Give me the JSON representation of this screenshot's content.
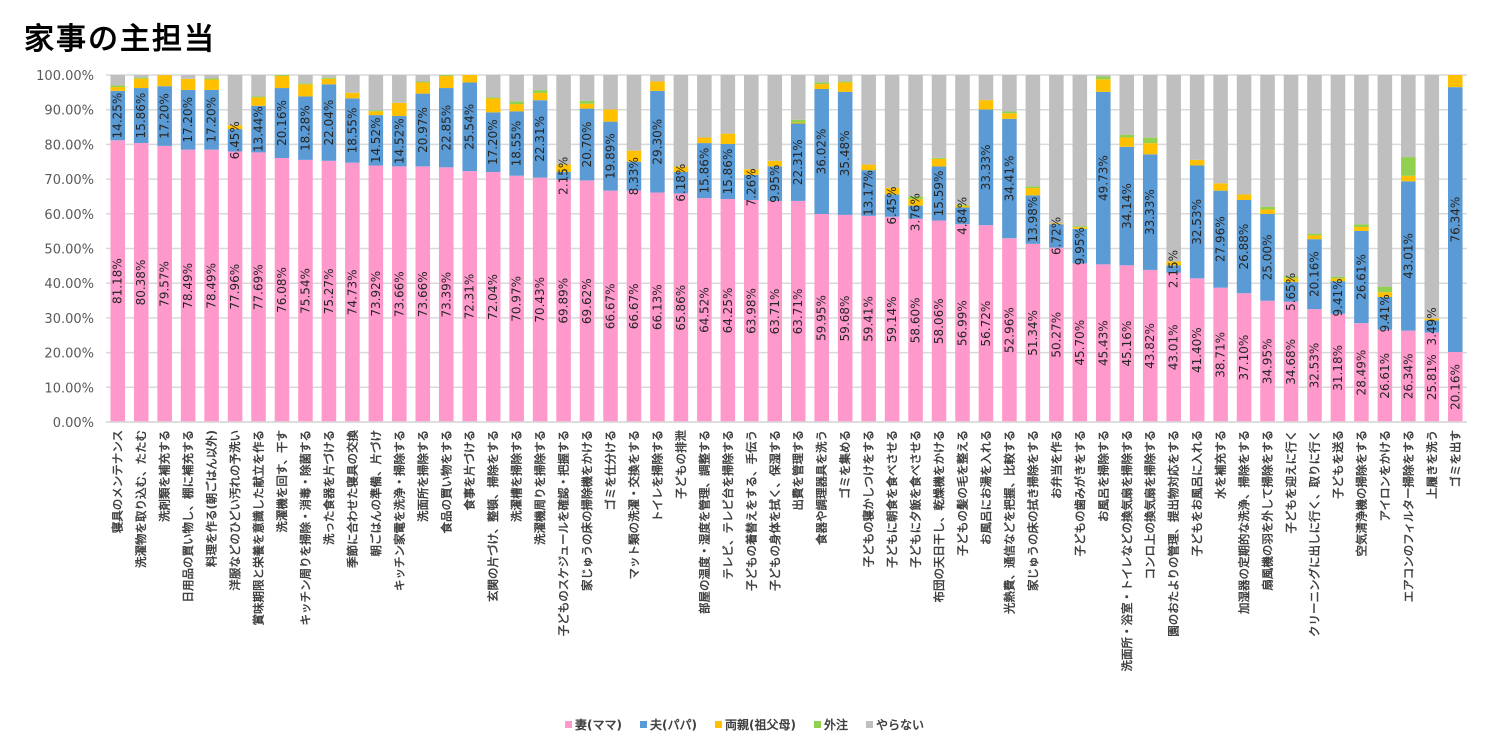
{
  "chart_data": {
    "type": "bar",
    "stacked": true,
    "title": "家事の主担当",
    "xlabel": "",
    "ylabel": "",
    "ylim": [
      0,
      100
    ],
    "yticks": [
      "0.00%",
      "10.00%",
      "20.00%",
      "30.00%",
      "40.00%",
      "50.00%",
      "60.00%",
      "70.00%",
      "80.00%",
      "90.00%",
      "100.00%"
    ],
    "grid": true,
    "legend_position": "bottom",
    "categories": [
      "寝具のメンテナンス",
      "洗濯物を取り込む、たたむ",
      "洗剤類を補充する",
      "日用品の買い物し、棚に補充する",
      "料理を作る(朝ごはん以外)",
      "洋服などのひどい汚れの予洗い",
      "賞味期限と栄養を意識した献立を作る",
      "洗濯機を回す、干す",
      "キッチン周りを掃除・消毒・除菌する",
      "洗った食器を片づける",
      "季節に合わせた寝具の交換",
      "朝ごはんの準備、片づけ",
      "キッチン家電を洗浄・掃除する",
      "洗面所を掃除する",
      "食品の買い物をする",
      "食事を片づける",
      "玄関の片づけ、整頓、掃除をする",
      "洗濯槽を掃除する",
      "洗濯機周りを掃除する",
      "子どものスケジュールを確認・把握する",
      "家じゅうの床の掃除機をかける",
      "ゴミを仕分ける",
      "マット類の洗濯・交換をする",
      "トイレを掃除する",
      "子どもの排泄",
      "部屋の温度・湿度を管理、調整する",
      "テレビ、テレビ台を掃除する",
      "子どもの着替えをする、手伝う",
      "子どもの身体を拭く、保湿する",
      "出費を管理する",
      "食器や調理器具を洗う",
      "ゴミを集める",
      "子どもの寝かしつけをする",
      "子どもに朝食を食べさせる",
      "子どもに夕飯を食べさせる",
      "布団の天日干し、乾燥機をかける",
      "子どもの髪の毛を整える",
      "お風呂にお湯を入れる",
      "光熱費、通信などを把握、比較する",
      "家じゅうの床の拭き掃除をする",
      "お弁当を作る",
      "子どもの歯みがきをする",
      "お風呂を掃除する",
      "洗面所・浴室・トイレなどの換気扇を掃除する",
      "コンロ上の換気扇を掃除する",
      "園のおたよりの管理、提出物対応をする",
      "子どもをお風呂に入れる",
      "水を補充する",
      "加湿器の定期的な洗浄、掃除をする",
      "扇風機の羽を外して掃除をする",
      "子どもを迎えに行く",
      "クリーニングに出しに行く、取りに行く",
      "子どもを送る",
      "空気清浄機の掃除をする",
      "アイロンをかける",
      "エアコンのフィルター掃除をする",
      "上履きを洗う",
      "ゴミを出す"
    ],
    "series": [
      {
        "name": "妻(ママ)",
        "color": "#ff99cc",
        "values": [
          81.18,
          80.38,
          79.57,
          78.49,
          78.49,
          77.96,
          77.69,
          76.08,
          75.54,
          75.27,
          74.73,
          73.92,
          73.66,
          73.66,
          73.39,
          72.31,
          72.04,
          70.97,
          70.43,
          69.89,
          69.62,
          66.67,
          66.67,
          66.13,
          65.86,
          64.52,
          64.25,
          63.98,
          63.71,
          63.71,
          59.95,
          59.68,
          59.41,
          59.14,
          58.6,
          58.06,
          56.99,
          56.72,
          52.96,
          51.34,
          50.27,
          45.7,
          45.43,
          45.16,
          43.82,
          43.01,
          41.4,
          38.71,
          37.1,
          34.95,
          34.68,
          32.53,
          31.18,
          28.49,
          26.61,
          26.34,
          25.81,
          20.16
        ]
      },
      {
        "name": "夫(パパ)",
        "color": "#5b9bd5",
        "values": [
          14.25,
          15.86,
          17.2,
          17.2,
          17.2,
          6.45,
          13.44,
          20.16,
          18.28,
          22.04,
          18.55,
          14.52,
          14.52,
          20.97,
          22.85,
          25.54,
          17.2,
          18.55,
          22.31,
          2.15,
          20.7,
          19.89,
          8.33,
          29.3,
          6.18,
          15.86,
          15.86,
          7.26,
          9.95,
          22.31,
          36.02,
          35.48,
          13.17,
          6.45,
          3.76,
          15.59,
          4.84,
          33.33,
          34.41,
          13.98,
          6.72,
          9.95,
          49.73,
          34.14,
          33.33,
          2.15,
          32.53,
          27.96,
          26.88,
          25.0,
          5.65,
          20.16,
          9.41,
          26.61,
          9.41,
          43.01,
          3.49,
          76.34
        ]
      },
      {
        "name": "両親(祖父母)",
        "color": "#ffc000",
        "values": [
          1.1,
          2.7,
          3.2,
          3.2,
          3.0,
          1.1,
          2.4,
          3.5,
          3.5,
          1.6,
          1.6,
          1.1,
          3.8,
          3.2,
          3.5,
          2.2,
          4.0,
          2.1,
          2.1,
          2.2,
          1.4,
          3.5,
          3.2,
          2.7,
          1.6,
          1.6,
          3.0,
          1.6,
          1.6,
          0.3,
          1.4,
          2.7,
          1.6,
          1.9,
          1.9,
          2.2,
          0.5,
          2.7,
          1.6,
          2.1,
          0.3,
          0.5,
          3.6,
          2.7,
          3.2,
          1.1,
          1.6,
          2.1,
          1.6,
          1.3,
          1.1,
          1.1,
          0.8,
          1.1,
          1.4,
          1.6,
          0.5,
          3.5
        ]
      },
      {
        "name": "外注",
        "color": "#92d050",
        "values": [
          0.5,
          0.3,
          0.0,
          0.0,
          0.3,
          0.0,
          0.3,
          0.3,
          0.3,
          0.3,
          0.0,
          0.3,
          0.0,
          0.3,
          0.3,
          0.3,
          0.3,
          0.8,
          0.8,
          0.0,
          0.8,
          0.0,
          0.0,
          0.0,
          0.0,
          0.0,
          0.0,
          0.0,
          0.0,
          0.8,
          0.5,
          0.3,
          0.0,
          0.0,
          0.8,
          0.3,
          0.3,
          0.0,
          0.5,
          0.5,
          0.0,
          0.3,
          0.8,
          0.8,
          1.6,
          0.0,
          0.0,
          0.0,
          0.0,
          0.8,
          0.5,
          0.5,
          0.5,
          0.8,
          1.6,
          5.4,
          0.0,
          0.0
        ]
      },
      {
        "name": "やらない",
        "color": "#bfbfbf",
        "values": [
          2.97,
          0.76,
          0.03,
          1.11,
          1.01,
          14.49,
          6.17,
          0.0,
          2.38,
          0.79,
          5.12,
          10.16,
          8.02,
          1.87,
          0.0,
          0.0,
          6.46,
          7.58,
          4.36,
          25.76,
          7.48,
          9.94,
          21.8,
          1.87,
          26.36,
          18.02,
          16.89,
          27.16,
          24.74,
          12.88,
          2.13,
          1.84,
          25.82,
          32.51,
          34.94,
          23.85,
          37.37,
          7.25,
          10.53,
          32.08,
          42.71,
          43.55,
          0.44,
          17.2,
          18.05,
          53.74,
          24.47,
          31.23,
          34.42,
          37.95,
          58.07,
          45.71,
          58.11,
          43.0,
          60.98,
          23.65,
          70.2,
          0.0
        ]
      }
    ]
  },
  "legend": {
    "items": [
      {
        "label": "妻(ママ)",
        "color": "#ff99cc"
      },
      {
        "label": "夫(パパ)",
        "color": "#5b9bd5"
      },
      {
        "label": "両親(祖父母)",
        "color": "#ffc000"
      },
      {
        "label": "外注",
        "color": "#92d050"
      },
      {
        "label": "やらない",
        "color": "#bfbfbf"
      }
    ]
  }
}
